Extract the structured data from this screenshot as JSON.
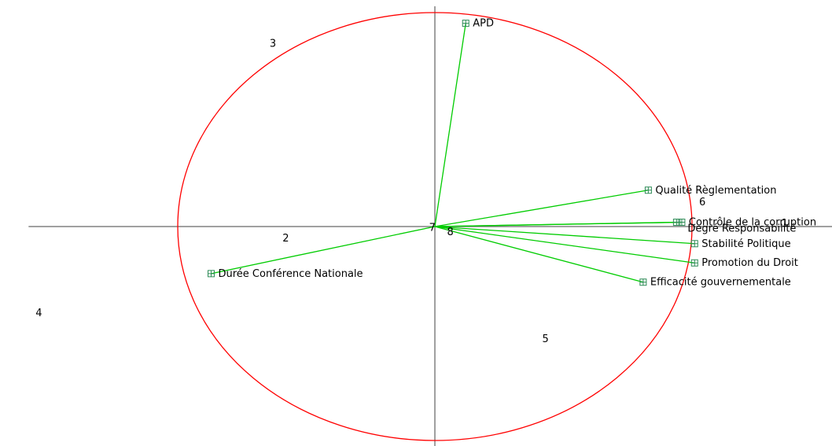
{
  "chart_data": {
    "type": "scatter",
    "subtype": "correlation-circle",
    "title": "",
    "xlabel": "",
    "ylabel": "",
    "xlim": [
      -1.58,
      1.58
    ],
    "ylim": [
      -1.05,
      1.05
    ],
    "grid": false,
    "legend": "none",
    "axes_color": "#808080",
    "circle_color": "#ff0000",
    "vector_color": "#00cc00",
    "variables": [
      {
        "label": "APD",
        "x": 0.12,
        "y": 0.95
      },
      {
        "label": "Qualité Règlementation",
        "x": 0.83,
        "y": 0.17
      },
      {
        "label": "Contrôle de la corruption",
        "x": 0.96,
        "y": 0.02
      },
      {
        "label": "Degré Responsabilité",
        "x": 0.94,
        "y": 0.02
      },
      {
        "label": "Stabilité Politique",
        "x": 1.01,
        "y": -0.08
      },
      {
        "label": "Promotion du Droit",
        "x": 1.01,
        "y": -0.17
      },
      {
        "label": "Efficacité gouvernementale",
        "x": 0.81,
        "y": -0.26
      },
      {
        "label": "Durée Conférence Nationale",
        "x": -0.87,
        "y": -0.22
      }
    ],
    "observations": [
      {
        "label": "1",
        "x": 1.36,
        "y": 0.0
      },
      {
        "label": "2",
        "x": -0.58,
        "y": -0.07
      },
      {
        "label": "3",
        "x": -0.63,
        "y": 0.84
      },
      {
        "label": "4",
        "x": -1.54,
        "y": -0.42
      },
      {
        "label": "5",
        "x": 0.43,
        "y": -0.54
      },
      {
        "label": "6",
        "x": 1.04,
        "y": 0.1
      },
      {
        "label": "7",
        "x": -0.01,
        "y": -0.02
      },
      {
        "label": "8",
        "x": 0.06,
        "y": -0.04
      }
    ]
  }
}
